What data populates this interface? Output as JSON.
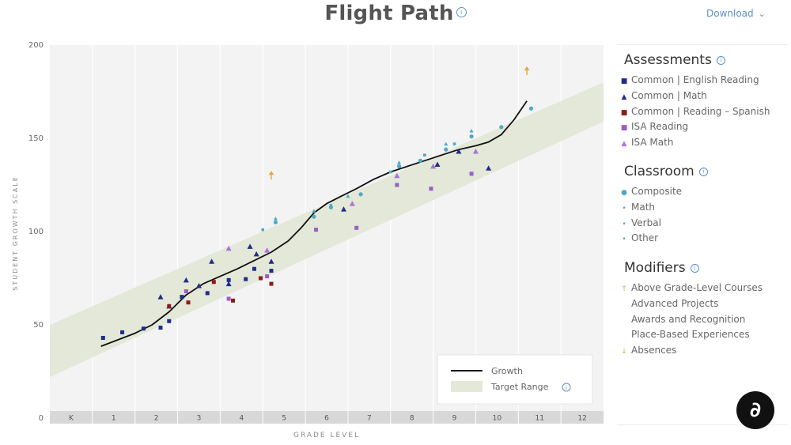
{
  "header": {
    "title": "Flight Path",
    "info_icon": "info-icon",
    "download_label": "Download",
    "download_icon": "chevron-down-icon"
  },
  "chart_data": {
    "type": "scatter",
    "ylabel": "STUDENT GROWTH SCALE",
    "xlabel": "GRADE LEVEL",
    "categories": [
      "K",
      "1",
      "2",
      "3",
      "4",
      "5",
      "6",
      "7",
      "8",
      "9",
      "10",
      "11",
      "12"
    ],
    "ylim": [
      0,
      200
    ],
    "yticks": [
      0,
      50,
      100,
      150,
      200
    ],
    "legend": {
      "position": "bottom-right",
      "growth_label": "Growth",
      "target_label": "Target Range"
    },
    "target_range": {
      "lower": [
        [
          0,
          22
        ],
        [
          13,
          159
        ]
      ],
      "upper": [
        [
          0,
          50
        ],
        [
          13,
          180
        ]
      ]
    },
    "growth_line": [
      [
        1.2,
        38.5
      ],
      [
        1.6,
        42
      ],
      [
        2,
        45.5
      ],
      [
        2.4,
        50
      ],
      [
        2.8,
        57
      ],
      [
        3.2,
        66
      ],
      [
        3.6,
        72
      ],
      [
        4,
        76
      ],
      [
        4.4,
        80
      ],
      [
        4.8,
        84.5
      ],
      [
        5.2,
        89
      ],
      [
        5.6,
        95
      ],
      [
        5.9,
        102
      ],
      [
        6.2,
        110
      ],
      [
        6.5,
        115
      ],
      [
        6.8,
        118.5
      ],
      [
        7.2,
        123
      ],
      [
        7.6,
        128
      ],
      [
        8,
        132
      ],
      [
        8.4,
        135
      ],
      [
        8.8,
        138
      ],
      [
        9.2,
        141
      ],
      [
        9.6,
        144
      ],
      [
        10,
        146
      ],
      [
        10.3,
        148
      ],
      [
        10.6,
        152
      ],
      [
        10.9,
        160
      ],
      [
        11.2,
        170
      ]
    ],
    "series": [
      {
        "name": "Common | English Reading",
        "color": "#1f2d8a",
        "shape": "square",
        "points": [
          [
            1.25,
            43
          ],
          [
            1.7,
            46
          ],
          [
            2.2,
            48
          ],
          [
            2.6,
            48.5
          ],
          [
            2.8,
            52
          ],
          [
            3.1,
            65
          ],
          [
            3.7,
            67
          ],
          [
            4.2,
            74
          ],
          [
            4.6,
            74.5
          ],
          [
            4.8,
            80
          ],
          [
            5.2,
            79
          ]
        ]
      },
      {
        "name": "Common | Math",
        "color": "#1f2d8a",
        "shape": "triangle",
        "points": [
          [
            2.6,
            65
          ],
          [
            2.8,
            60
          ],
          [
            3.2,
            74
          ],
          [
            3.5,
            71
          ],
          [
            3.8,
            84
          ],
          [
            4.2,
            72
          ],
          [
            4.7,
            92
          ],
          [
            4.85,
            88
          ],
          [
            5.2,
            84
          ],
          [
            6.9,
            112
          ],
          [
            9.1,
            136
          ],
          [
            9.6,
            143
          ],
          [
            10.3,
            134
          ]
        ]
      },
      {
        "name": "Common | Reading – Spanish",
        "color": "#8b1a1a",
        "shape": "square",
        "points": [
          [
            2.8,
            60
          ],
          [
            3.25,
            62
          ],
          [
            3.85,
            73
          ],
          [
            4.3,
            63
          ],
          [
            4.95,
            75
          ],
          [
            5.2,
            72
          ]
        ]
      },
      {
        "name": "ISA Reading",
        "color": "#9c5cc7",
        "shape": "square",
        "points": [
          [
            3.2,
            68
          ],
          [
            4.2,
            64
          ],
          [
            5.1,
            76
          ],
          [
            6.25,
            101
          ],
          [
            7.2,
            102
          ],
          [
            8.15,
            125
          ],
          [
            8.95,
            123
          ],
          [
            9.9,
            131
          ]
        ]
      },
      {
        "name": "ISA Math",
        "color": "#a774d6",
        "shape": "triangle",
        "points": [
          [
            4.2,
            91
          ],
          [
            5.1,
            90
          ],
          [
            7.1,
            115
          ],
          [
            8.15,
            130
          ],
          [
            9.0,
            135
          ],
          [
            10.0,
            143
          ]
        ]
      },
      {
        "name": "Composite",
        "color": "#4ea9c6",
        "shape": "circle",
        "points": [
          [
            5.3,
            105
          ],
          [
            6.2,
            108
          ],
          [
            6.6,
            113
          ],
          [
            7.3,
            120
          ],
          [
            8.2,
            135
          ],
          [
            8.7,
            138
          ],
          [
            9.3,
            144
          ],
          [
            9.9,
            151
          ],
          [
            10.6,
            156
          ],
          [
            11.3,
            166
          ]
        ]
      },
      {
        "name": "Math",
        "color": "#4ea9c6",
        "shape": "small-triangle",
        "points": [
          [
            5.3,
            107
          ],
          [
            6.2,
            111
          ],
          [
            7.0,
            119
          ],
          [
            8.2,
            137
          ],
          [
            9.3,
            147
          ],
          [
            9.9,
            154
          ]
        ]
      },
      {
        "name": "Verbal",
        "color": "#4ea9c6",
        "shape": "small-square",
        "points": [
          [
            5.0,
            101
          ],
          [
            6.6,
            114
          ],
          [
            8.0,
            132
          ],
          [
            8.8,
            141
          ],
          [
            9.5,
            147
          ]
        ]
      },
      {
        "name": "Above Grade-Level Courses",
        "color": "#e0a84a",
        "shape": "arrow-up",
        "points": [
          [
            5.2,
            130
          ],
          [
            11.2,
            186
          ]
        ]
      }
    ]
  },
  "sidebar": {
    "assessments": {
      "title": "Assessments",
      "items": [
        {
          "label": "Common | English Reading",
          "mark": "■",
          "color": "#1f2d8a"
        },
        {
          "label": "Common | Math",
          "mark": "▲",
          "color": "#1f2d8a"
        },
        {
          "label": "Common | Reading – Spanish",
          "mark": "■",
          "color": "#8b1a1a"
        },
        {
          "label": "ISA Reading",
          "mark": "■",
          "color": "#9c5cc7"
        },
        {
          "label": "ISA Math",
          "mark": "▲",
          "color": "#a774d6"
        }
      ]
    },
    "classroom": {
      "title": "Classroom",
      "items": [
        {
          "label": "Composite",
          "mark": "●",
          "color": "#4ea9c6"
        },
        {
          "label": "Math",
          "mark": "•",
          "color": "#4ea9c6"
        },
        {
          "label": "Verbal",
          "mark": "•",
          "color": "#4ea9c6"
        },
        {
          "label": "Other",
          "mark": "•",
          "color": "#4ea9c6"
        }
      ]
    },
    "modifiers": {
      "title": "Modifiers",
      "items": [
        {
          "label": "Above Grade-Level Courses",
          "mark": "↑",
          "color": "#e0a84a"
        },
        {
          "label": "Advanced Projects",
          "mark": "",
          "color": "#666"
        },
        {
          "label": "Awards and Recognition",
          "mark": "",
          "color": "#666"
        },
        {
          "label": "Place-Based Experiences",
          "mark": "",
          "color": "#666"
        },
        {
          "label": "Absences",
          "mark": "↓",
          "color": "#e0a84a"
        }
      ]
    }
  },
  "fab": {
    "icon": "chat-bot-icon",
    "glyph": "∂"
  }
}
